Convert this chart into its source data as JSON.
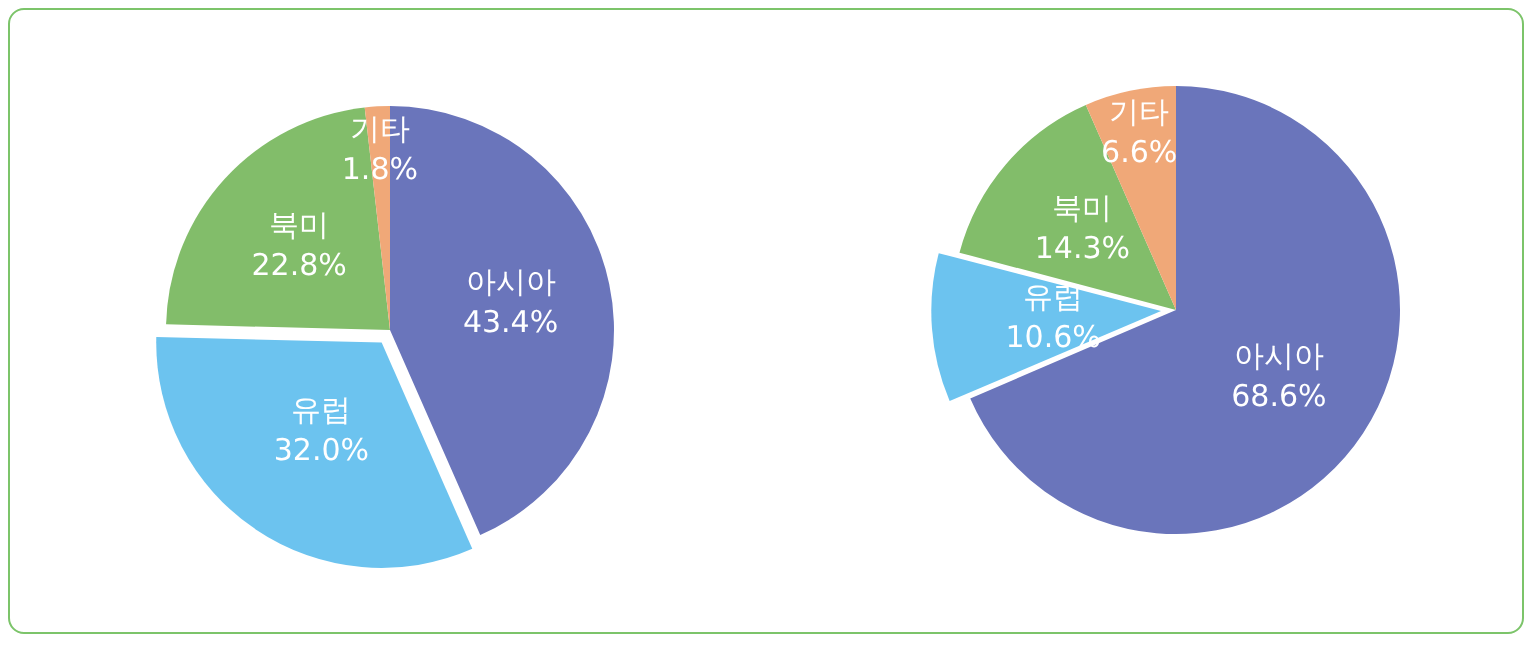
{
  "chart_data": [
    {
      "type": "pie",
      "categories": [
        "아시아",
        "유럽",
        "북미",
        "기타"
      ],
      "values": [
        43.4,
        32.0,
        22.8,
        1.8
      ],
      "value_labels": [
        "43.4%",
        "32.0%",
        "22.8%",
        "1.8%"
      ],
      "colors": [
        "#6a75bb",
        "#6cc3ef",
        "#82bd6a",
        "#f0a878"
      ],
      "legend": false
    },
    {
      "type": "pie",
      "categories": [
        "아시아",
        "유럽",
        "북미",
        "기타"
      ],
      "values": [
        68.6,
        10.6,
        14.3,
        6.6
      ],
      "value_labels": [
        "68.6%",
        "10.6%",
        "14.3%",
        "6.6%"
      ],
      "colors": [
        "#6a75bb",
        "#6cc3ef",
        "#82bd6a",
        "#f0a878"
      ],
      "legend": false
    }
  ]
}
